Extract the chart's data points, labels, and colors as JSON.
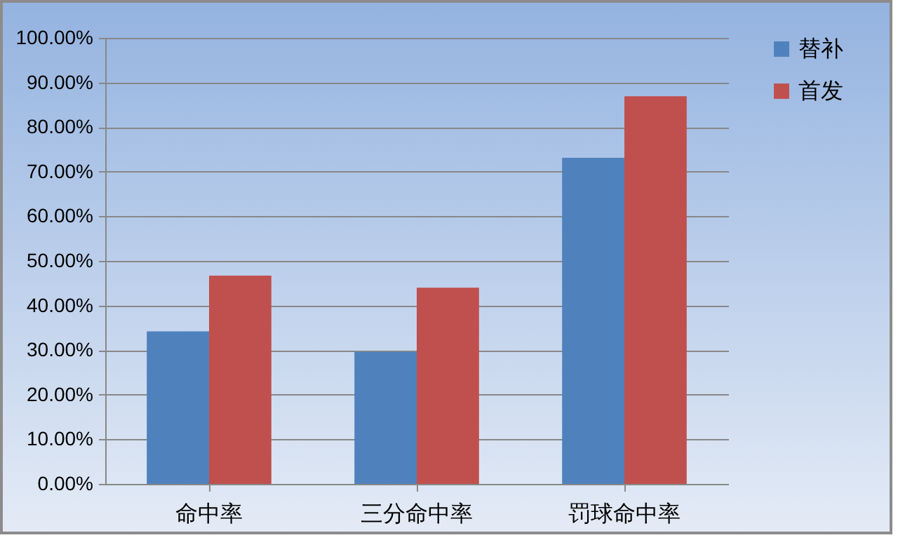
{
  "chart_data": {
    "type": "bar",
    "categories": [
      "命中率",
      "三分命中率",
      "罚球命中率"
    ],
    "series": [
      {
        "name": "替补",
        "color": "#4f81bd",
        "values": [
          34.2,
          29.6,
          73.1
        ]
      },
      {
        "name": "首发",
        "color": "#c0504d",
        "values": [
          46.7,
          44.0,
          86.9
        ]
      }
    ],
    "ylim": [
      0,
      100
    ],
    "yticks": [
      {
        "value": 0,
        "label": "0.00%"
      },
      {
        "value": 10,
        "label": "10.00%"
      },
      {
        "value": 20,
        "label": "20.00%"
      },
      {
        "value": 30,
        "label": "30.00%"
      },
      {
        "value": 40,
        "label": "40.00%"
      },
      {
        "value": 50,
        "label": "50.00%"
      },
      {
        "value": 60,
        "label": "60.00%"
      },
      {
        "value": 70,
        "label": "70.00%"
      },
      {
        "value": 80,
        "label": "80.00%"
      },
      {
        "value": 90,
        "label": "90.00%"
      },
      {
        "value": 100,
        "label": "100.00%"
      }
    ],
    "grid": "y",
    "legend": "right"
  }
}
